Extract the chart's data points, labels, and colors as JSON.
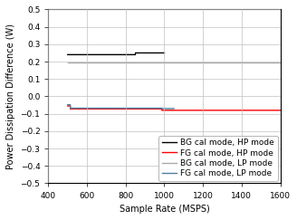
{
  "title": "",
  "xlabel": "Sample Rate (MSPS)",
  "ylabel": "Power Dissipation Difference (W)",
  "xlim": [
    400,
    1600
  ],
  "ylim": [
    -0.5,
    0.5
  ],
  "xticks": [
    400,
    600,
    800,
    1000,
    1200,
    1400,
    1600
  ],
  "yticks": [
    -0.5,
    -0.4,
    -0.3,
    -0.2,
    -0.1,
    0.0,
    0.1,
    0.2,
    0.3,
    0.4,
    0.5
  ],
  "series": [
    {
      "label": "BG cal mode, HP mode",
      "color": "#000000",
      "linewidth": 1.0,
      "x": [
        500,
        513,
        514,
        850,
        851,
        987,
        988,
        1000
      ],
      "y": [
        0.24,
        0.24,
        0.24,
        0.24,
        0.25,
        0.25,
        0.25,
        0.25
      ]
    },
    {
      "label": "FG cal mode, HP mode",
      "color": "#ff0000",
      "linewidth": 1.0,
      "x": [
        500,
        513,
        514,
        987,
        988,
        1600
      ],
      "y": [
        -0.055,
        -0.055,
        -0.072,
        -0.072,
        -0.08,
        -0.08
      ]
    },
    {
      "label": "BG cal mode, LP mode",
      "color": "#aaaaaa",
      "linewidth": 1.0,
      "x": [
        500,
        513,
        514,
        987,
        988,
        1600
      ],
      "y": [
        0.195,
        0.195,
        0.195,
        0.195,
        0.195,
        0.195
      ]
    },
    {
      "label": "FG cal mode, LP mode",
      "color": "#4d7fa0",
      "linewidth": 1.0,
      "x": [
        500,
        513,
        514,
        987,
        988,
        1050
      ],
      "y": [
        -0.048,
        -0.048,
        -0.068,
        -0.068,
        -0.07,
        -0.07
      ]
    }
  ],
  "legend_loc": "lower right",
  "legend_bbox": null,
  "grid": true,
  "grid_color": "#c0c0c0",
  "grid_linewidth": 0.5,
  "font_size": 6.5,
  "tick_font_size": 6.5,
  "label_font_size": 7.0,
  "bg_color": "#ffffff",
  "axes_linewidth": 0.8
}
